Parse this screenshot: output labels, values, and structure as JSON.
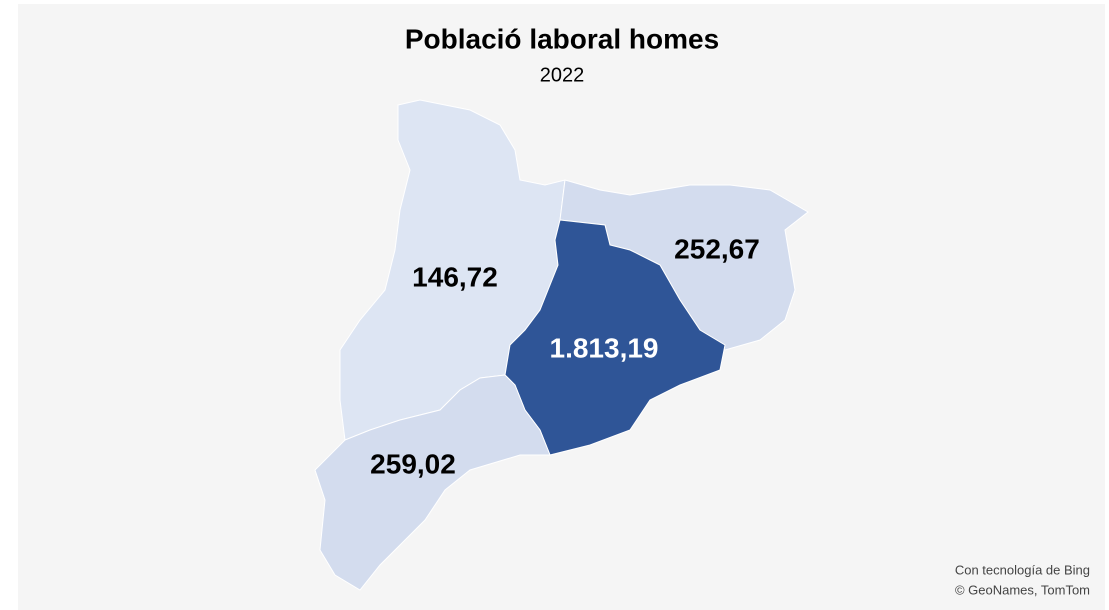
{
  "chart_data": {
    "type": "map",
    "title": "Població laboral homes",
    "subtitle": "2022",
    "values": [
      146.72,
      252.67,
      1813.19,
      259.02
    ],
    "value_labels": [
      "146,72",
      "252,67",
      "1.813,19",
      "259,02"
    ],
    "colors": [
      "#dde5f3",
      "#d3dcee",
      "#2f5597",
      "#d3dcee"
    ],
    "attribution": [
      "Con tecnología de Bing",
      "© GeoNames, TomTom"
    ]
  }
}
